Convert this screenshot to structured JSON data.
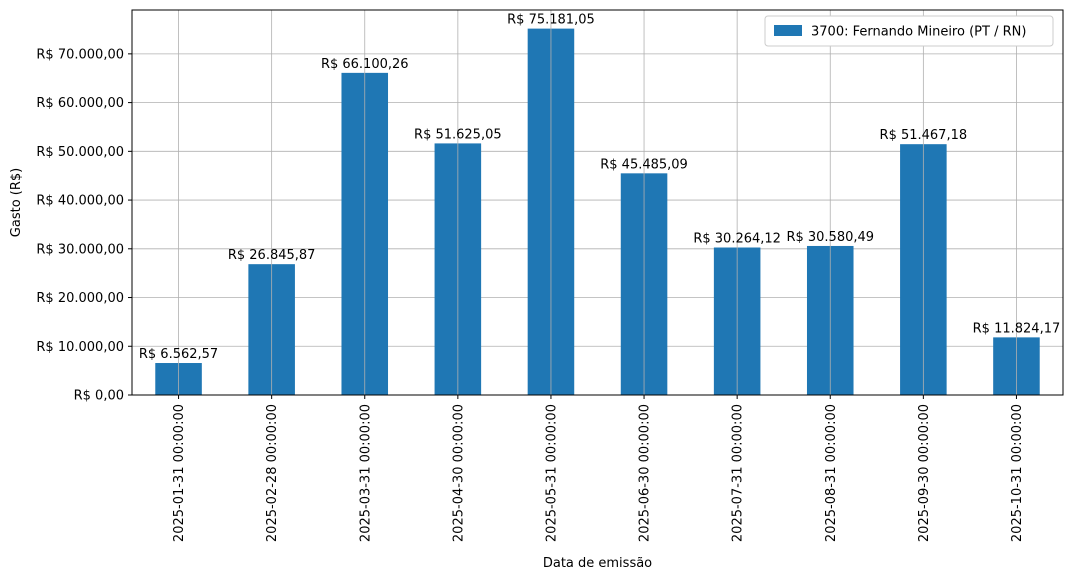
{
  "chart_data": {
    "type": "bar",
    "categories": [
      "2025-01-31 00:00:00",
      "2025-02-28 00:00:00",
      "2025-03-31 00:00:00",
      "2025-04-30 00:00:00",
      "2025-05-31 00:00:00",
      "2025-06-30 00:00:00",
      "2025-07-31 00:00:00",
      "2025-08-31 00:00:00",
      "2025-09-30 00:00:00",
      "2025-10-31 00:00:00"
    ],
    "series": [
      {
        "name": "3700: Fernando Mineiro (PT / RN)",
        "color": "#1f77b4",
        "values": [
          6562.57,
          26845.87,
          66100.26,
          51625.05,
          75181.05,
          45485.09,
          30264.12,
          30580.49,
          51467.18,
          11824.17
        ]
      }
    ],
    "data_labels": [
      "R$ 6.562,57",
      "R$ 26.845,87",
      "R$ 66.100,26",
      "R$ 51.625,05",
      "R$ 75.181,05",
      "R$ 45.485,09",
      "R$ 30.264,12",
      "R$ 30.580,49",
      "R$ 51.467,18",
      "R$ 11.824,17"
    ],
    "xlabel": "Data de emissão",
    "ylabel": "Gasto (R$)",
    "ylim": [
      0,
      79000
    ],
    "yticks": [
      0,
      10000,
      20000,
      30000,
      40000,
      50000,
      60000,
      70000
    ],
    "ytick_labels": [
      "R$ 0,00",
      "R$ 10.000,00",
      "R$ 20.000,00",
      "R$ 30.000,00",
      "R$ 40.000,00",
      "R$ 50.000,00",
      "R$ 60.000,00",
      "R$ 70.000,00"
    ],
    "grid": true,
    "legend_position": "top-right"
  }
}
